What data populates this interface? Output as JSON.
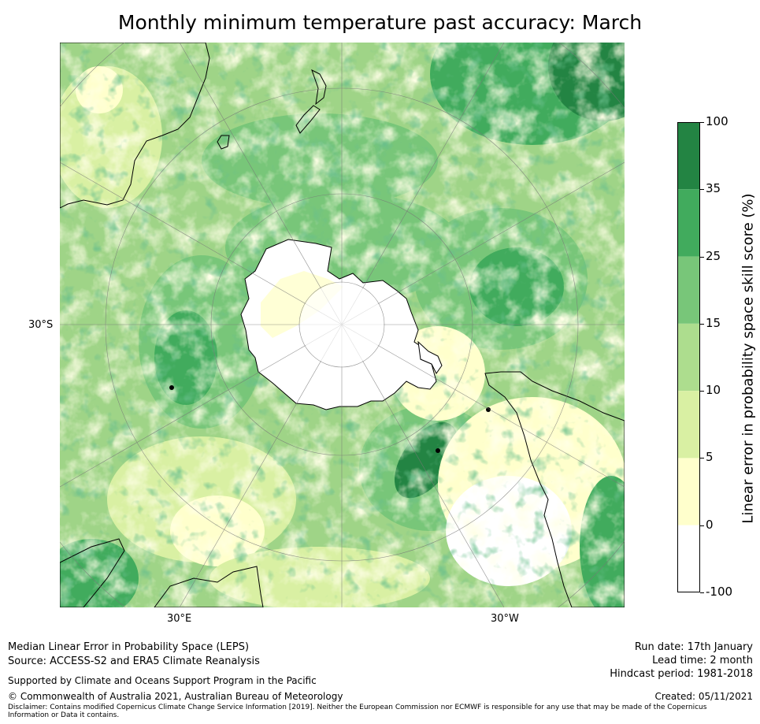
{
  "title": "Monthly minimum temperature past accuracy: March",
  "map": {
    "projection": "south-polar-stereographic",
    "lat_labels": [
      "30°S"
    ],
    "lon_labels": [
      "30°E",
      "30°W"
    ],
    "ocean_colors": [
      "#ffffff",
      "#ffffcc",
      "#d9f0a3",
      "#addd8e",
      "#78c679",
      "#41ab5d",
      "#238443"
    ]
  },
  "colorbar": {
    "label": "Linear error in probability space skill score (%)",
    "ticks": [
      "100",
      "35",
      "25",
      "15",
      "10",
      "5",
      "0",
      "-100"
    ],
    "colors": [
      "#238443",
      "#41ab5d",
      "#78c679",
      "#addd8e",
      "#d9f0a3",
      "#ffffcc",
      "#ffffff"
    ]
  },
  "footer": {
    "line1": "Median Linear Error in Probability Space (LEPS)",
    "line2": "Source: ACCESS-S2 and ERA5 Climate Reanalysis",
    "support": "Supported by Climate and Oceans Support Program in the Pacific",
    "copyright": "© Commonwealth of Australia 2021, Australian Bureau of Meteorology",
    "disclaimer": "Disclaimer: Contains modified Copernicus Climate Change Service Information [2019]. Neither the European Commission nor ECMWF is responsible for any use that may be made of the Copernicus Information or Data it contains.",
    "run_date": "Run date: 17th January",
    "lead_time": "Lead time: 2 month",
    "hindcast": "Hindcast period: 1981-2018",
    "created": "Created: 05/11/2021"
  }
}
